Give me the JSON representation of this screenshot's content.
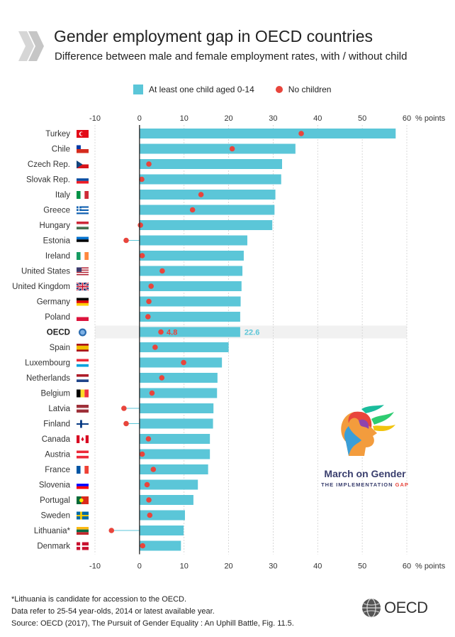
{
  "title": "Gender employment gap in OECD countries",
  "subtitle": "Difference between male and female employment rates, with / without child",
  "legend": {
    "bar_label": "At least one child aged 0-14",
    "dot_label": "No children"
  },
  "footnote": {
    "line1": "*Lithuania is candidate for accession to the OECD.",
    "line2": "Data refer to 25-54 year-olds, 2014 or latest available year.",
    "line3": "Source: OECD (2017), The Pursuit of Gender Equality : An Uphill Battle, Fig. 11.5."
  },
  "campaign": {
    "title": "March on Gender",
    "subtitle_main": "THE IMPLEMENTATION ",
    "subtitle_accent": "GAP"
  },
  "brand": {
    "name": "OECD"
  },
  "colors": {
    "bar": "#5bc6d8",
    "dot": "#e8453c",
    "highlight": "#f1f1f1"
  },
  "chart_data": {
    "type": "bar",
    "orientation": "horizontal",
    "unit_label": "% points",
    "xlim": [
      -10,
      60
    ],
    "ticks": [
      -10,
      0,
      10,
      20,
      30,
      40,
      50,
      60
    ],
    "tick_labels": [
      "-10",
      "0",
      "10",
      "20",
      "30",
      "40",
      "50",
      "60"
    ],
    "highlight": "OECD",
    "highlight_bar_label": "22.6",
    "highlight_dot_label": "4.8",
    "categories": [
      "Turkey",
      "Chile",
      "Czech Rep.",
      "Slovak Rep.",
      "Italy",
      "Greece",
      "Hungary",
      "Estonia",
      "Ireland",
      "United States",
      "United Kingdom",
      "Germany",
      "Poland",
      "OECD",
      "Spain",
      "Luxembourg",
      "Netherlands",
      "Belgium",
      "Latvia",
      "Finland",
      "Canada",
      "Austria",
      "France",
      "Slovenia",
      "Portugal",
      "Sweden",
      "Lithuania*",
      "Denmark"
    ],
    "series": [
      {
        "name": "At least one child aged 0-14",
        "values": [
          57.5,
          35,
          32,
          31.8,
          30.5,
          30.3,
          29.8,
          24.2,
          23.4,
          23.1,
          22.9,
          22.7,
          22.6,
          22.6,
          20,
          18.5,
          17.5,
          17.4,
          16.6,
          16.5,
          15.8,
          15.8,
          15.4,
          13.1,
          12.1,
          10.2,
          9.9,
          9.3
        ]
      },
      {
        "name": "No children",
        "values": [
          36.3,
          20.8,
          2.1,
          0.5,
          13.8,
          11.9,
          0.2,
          -3,
          0.6,
          5.1,
          2.6,
          2.1,
          1.9,
          4.8,
          3.5,
          9.9,
          5,
          2.8,
          -3.5,
          -3,
          2,
          0.6,
          3.1,
          1.7,
          2.1,
          2.3,
          -6.3,
          0.7
        ]
      }
    ],
    "flags": [
      {
        "type": "turkey",
        "colors": [
          "#e30a17",
          "#ffffff"
        ]
      },
      {
        "type": "chile",
        "colors": [
          "#ffffff",
          "#d52b1e",
          "#0039a6"
        ]
      },
      {
        "type": "czech",
        "colors": [
          "#ffffff",
          "#d7141a",
          "#11457e"
        ]
      },
      {
        "type": "hstripes",
        "colors": [
          "#ffffff",
          "#0b4ea2",
          "#ee1c25"
        ]
      },
      {
        "type": "vstripes",
        "colors": [
          "#009246",
          "#ffffff",
          "#ce2b37"
        ]
      },
      {
        "type": "greece",
        "colors": [
          "#0d5eaf",
          "#ffffff"
        ]
      },
      {
        "type": "hstripes",
        "colors": [
          "#ce2939",
          "#ffffff",
          "#477050"
        ]
      },
      {
        "type": "hstripes",
        "colors": [
          "#0072ce",
          "#000000",
          "#ffffff"
        ]
      },
      {
        "type": "vstripes",
        "colors": [
          "#169b62",
          "#ffffff",
          "#ff883e"
        ]
      },
      {
        "type": "usa",
        "colors": [
          "#b22234",
          "#ffffff",
          "#3c3b6e"
        ]
      },
      {
        "type": "uk",
        "colors": [
          "#012169",
          "#ffffff",
          "#c8102e"
        ]
      },
      {
        "type": "hstripes",
        "colors": [
          "#000000",
          "#dd0000",
          "#ffce00"
        ]
      },
      {
        "type": "hstripes",
        "colors": [
          "#ffffff",
          "#dc143c"
        ]
      },
      {
        "type": "oecd",
        "colors": [
          "#2b6cb0",
          "#7fb2e5"
        ]
      },
      {
        "type": "spain",
        "colors": [
          "#aa151b",
          "#f1bf00"
        ]
      },
      {
        "type": "hstripes",
        "colors": [
          "#ed2939",
          "#ffffff",
          "#00a1de"
        ]
      },
      {
        "type": "hstripes",
        "colors": [
          "#ae1c28",
          "#ffffff",
          "#21468b"
        ]
      },
      {
        "type": "vstripes",
        "colors": [
          "#000000",
          "#fdda24",
          "#ef3340"
        ]
      },
      {
        "type": "latvia",
        "colors": [
          "#9e3039",
          "#ffffff"
        ]
      },
      {
        "type": "nordic",
        "colors": [
          "#ffffff",
          "#003580"
        ]
      },
      {
        "type": "canada",
        "colors": [
          "#d80621",
          "#ffffff"
        ]
      },
      {
        "type": "hstripes",
        "colors": [
          "#ed2939",
          "#ffffff",
          "#ed2939"
        ]
      },
      {
        "type": "vstripes",
        "colors": [
          "#0055a4",
          "#ffffff",
          "#ef4135"
        ]
      },
      {
        "type": "hstripes",
        "colors": [
          "#ffffff",
          "#0000ff",
          "#ff0000"
        ]
      },
      {
        "type": "portugal",
        "colors": [
          "#046a38",
          "#da291c",
          "#ffe900"
        ]
      },
      {
        "type": "nordic",
        "colors": [
          "#006aa7",
          "#fecc00"
        ]
      },
      {
        "type": "hstripes",
        "colors": [
          "#fdb913",
          "#006a44",
          "#c1272d"
        ]
      },
      {
        "type": "nordic",
        "colors": [
          "#c8102e",
          "#ffffff"
        ]
      }
    ]
  }
}
